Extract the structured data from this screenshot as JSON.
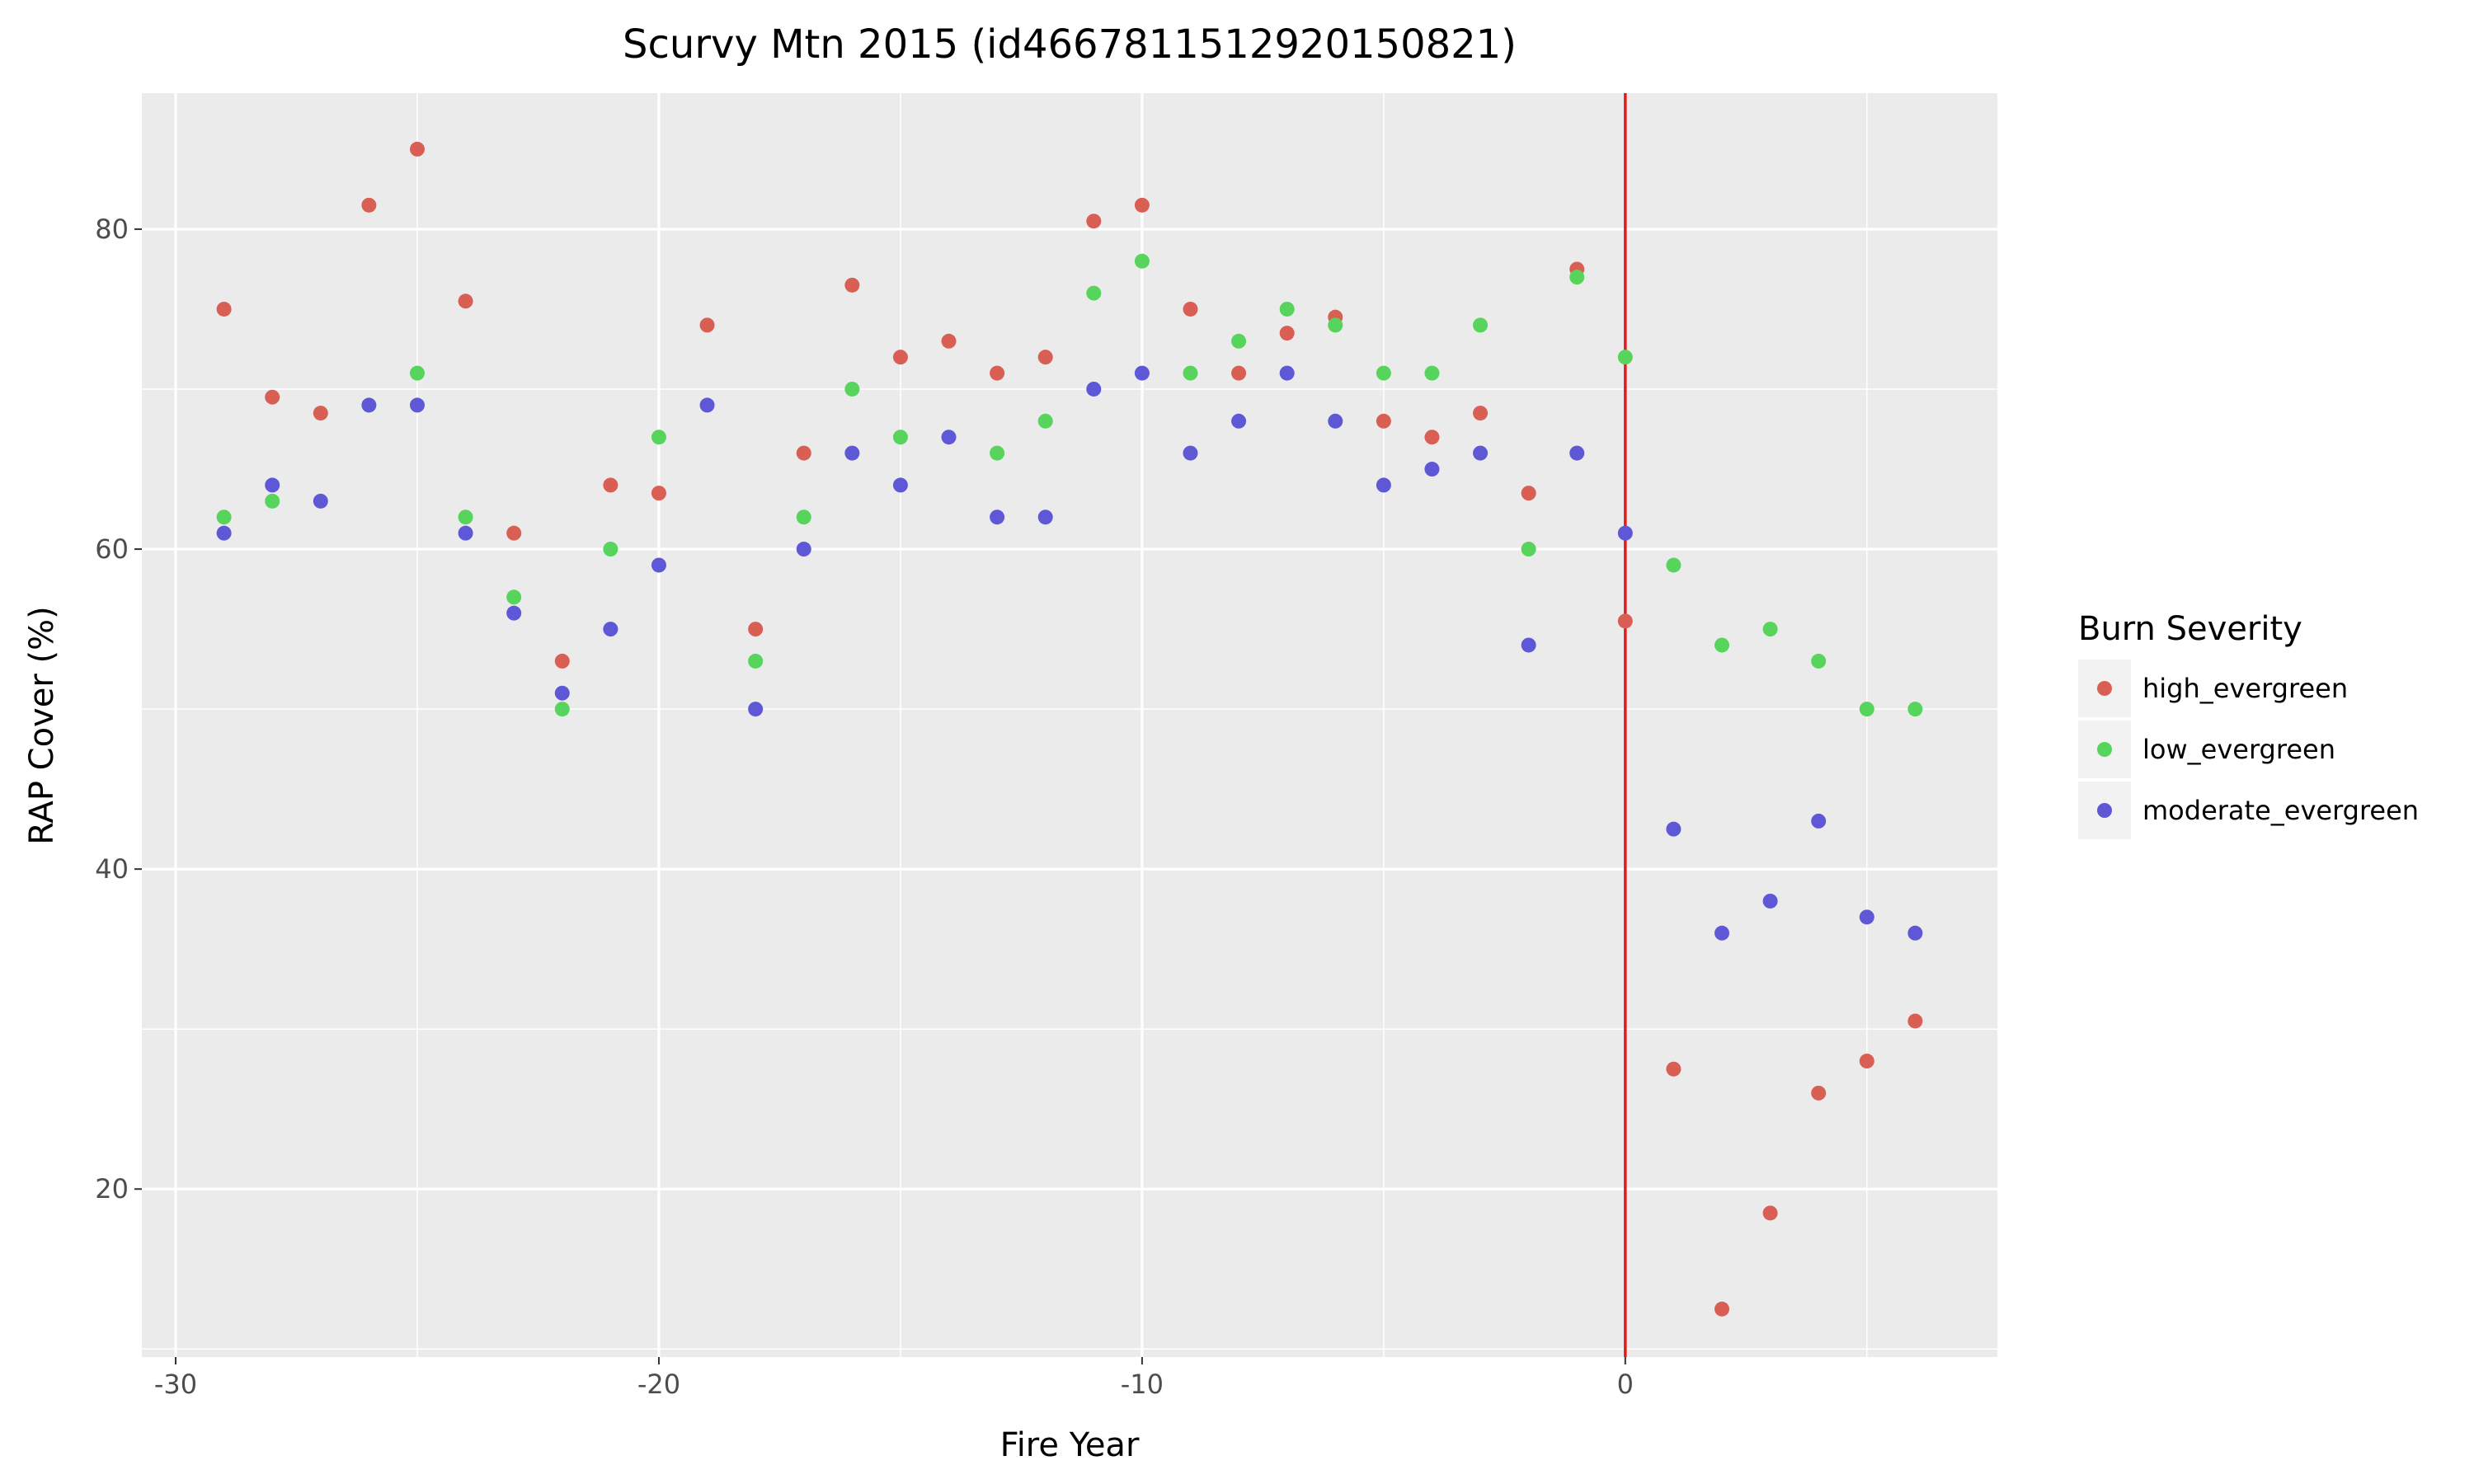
{
  "chart_data": {
    "type": "scatter",
    "title": "Scurvy Mtn 2015 (id4667811512920150821)",
    "xlabel": "Fire Year",
    "ylabel": "RAP Cover (%)",
    "xlim": [
      -30.7,
      7.7
    ],
    "ylim": [
      9.5,
      88.5
    ],
    "x_ticks": [
      -30,
      -20,
      -10,
      0
    ],
    "x_tick_labels": [
      "-30",
      "-20",
      "-10",
      "0"
    ],
    "y_ticks": [
      20,
      40,
      60,
      80
    ],
    "y_tick_labels": [
      "20",
      "40",
      "60",
      "80"
    ],
    "grid": true,
    "panel_background": "#ebebeb",
    "reference_line": {
      "x": 0,
      "color": "#e41a1c"
    },
    "legend": {
      "title": "Burn Severity",
      "position": "right"
    },
    "series": [
      {
        "name": "high_evergreen",
        "color": "#d95f55",
        "points": [
          [
            -29,
            75
          ],
          [
            -28,
            69.5
          ],
          [
            -27,
            68.5
          ],
          [
            -26,
            81.5
          ],
          [
            -25,
            85
          ],
          [
            -24,
            75.5
          ],
          [
            -23,
            61
          ],
          [
            -22,
            53
          ],
          [
            -21,
            64
          ],
          [
            -20,
            63.5
          ],
          [
            -19,
            74
          ],
          [
            -18,
            55
          ],
          [
            -17,
            66
          ],
          [
            -16,
            76.5
          ],
          [
            -15,
            72
          ],
          [
            -14,
            73
          ],
          [
            -13,
            71
          ],
          [
            -12,
            72
          ],
          [
            -11,
            80.5
          ],
          [
            -10,
            81.5
          ],
          [
            -9,
            75
          ],
          [
            -8,
            71
          ],
          [
            -7,
            73.5
          ],
          [
            -6,
            74.5
          ],
          [
            -5,
            68
          ],
          [
            -4,
            67
          ],
          [
            -3,
            68.5
          ],
          [
            -2,
            63.5
          ],
          [
            -1,
            77.5
          ],
          [
            0,
            55.5
          ],
          [
            1,
            27.5
          ],
          [
            2,
            12.5
          ],
          [
            3,
            18.5
          ],
          [
            4,
            26
          ],
          [
            5,
            28
          ],
          [
            6,
            30.5
          ]
        ]
      },
      {
        "name": "low_evergreen",
        "color": "#56d45c",
        "points": [
          [
            -29,
            62
          ],
          [
            -28,
            63
          ],
          [
            -25,
            71
          ],
          [
            -24,
            62
          ],
          [
            -23,
            57
          ],
          [
            -22,
            50
          ],
          [
            -21,
            60
          ],
          [
            -20,
            67
          ],
          [
            -18,
            53
          ],
          [
            -17,
            62
          ],
          [
            -16,
            70
          ],
          [
            -15,
            67
          ],
          [
            -13,
            66
          ],
          [
            -12,
            68
          ],
          [
            -11,
            76
          ],
          [
            -10,
            78
          ],
          [
            -9,
            71
          ],
          [
            -8,
            73
          ],
          [
            -7,
            75
          ],
          [
            -6,
            74
          ],
          [
            -5,
            71
          ],
          [
            -4,
            71
          ],
          [
            -3,
            74
          ],
          [
            -2,
            60
          ],
          [
            -1,
            77
          ],
          [
            0,
            72
          ],
          [
            1,
            59
          ],
          [
            2,
            54
          ],
          [
            3,
            55
          ],
          [
            4,
            53
          ],
          [
            5,
            50
          ],
          [
            6,
            50
          ]
        ]
      },
      {
        "name": "moderate_evergreen",
        "color": "#5e57d6",
        "points": [
          [
            -29,
            61
          ],
          [
            -28,
            64
          ],
          [
            -27,
            63
          ],
          [
            -26,
            69
          ],
          [
            -25,
            69
          ],
          [
            -24,
            61
          ],
          [
            -23,
            56
          ],
          [
            -22,
            51
          ],
          [
            -21,
            55
          ],
          [
            -20,
            59
          ],
          [
            -19,
            69
          ],
          [
            -18,
            50
          ],
          [
            -17,
            60
          ],
          [
            -16,
            66
          ],
          [
            -15,
            64
          ],
          [
            -14,
            67
          ],
          [
            -13,
            62
          ],
          [
            -12,
            62
          ],
          [
            -11,
            70
          ],
          [
            -10,
            71
          ],
          [
            -9,
            66
          ],
          [
            -8,
            68
          ],
          [
            -7,
            71
          ],
          [
            -6,
            68
          ],
          [
            -5,
            64
          ],
          [
            -4,
            65
          ],
          [
            -3,
            66
          ],
          [
            -2,
            54
          ],
          [
            -1,
            66
          ],
          [
            0,
            61
          ],
          [
            1,
            42.5
          ],
          [
            2,
            36
          ],
          [
            3,
            38
          ],
          [
            4,
            43
          ],
          [
            5,
            37
          ],
          [
            6,
            36
          ]
        ]
      }
    ]
  }
}
